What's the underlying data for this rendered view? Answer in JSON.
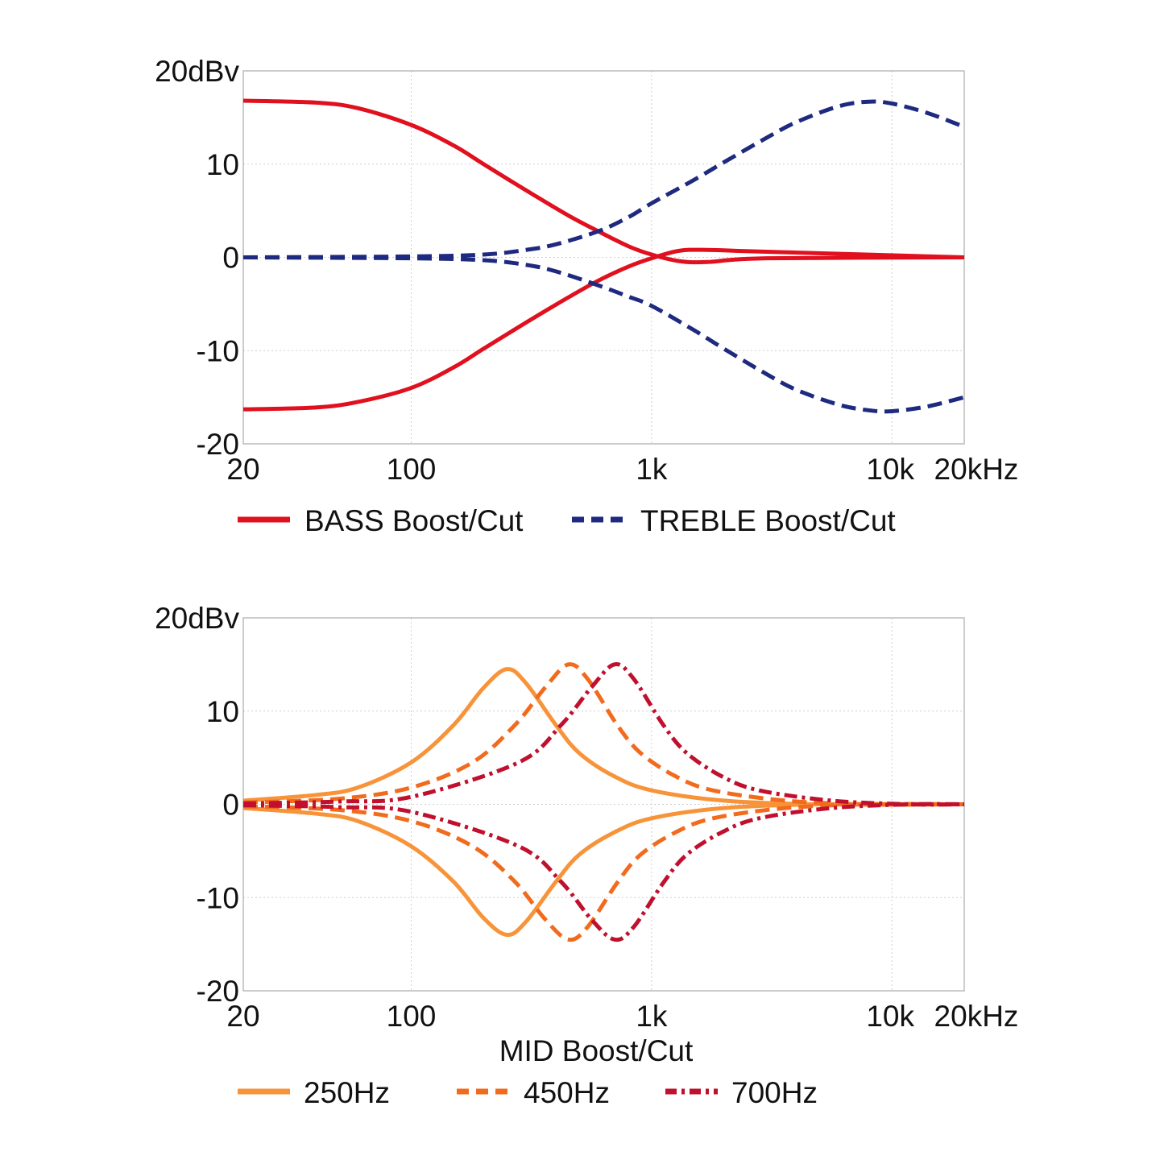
{
  "chart_data": [
    {
      "type": "line",
      "x_scale": "log",
      "xlim": [
        20,
        20000
      ],
      "ylim": [
        -20,
        20
      ],
      "grid": true,
      "x_ticks": [
        {
          "v": 20,
          "label": "20"
        },
        {
          "v": 100,
          "label": "100"
        },
        {
          "v": 1000,
          "label": "1k"
        },
        {
          "v": 10000,
          "label": "10k"
        },
        {
          "v": 20000,
          "label": "20kHz"
        }
      ],
      "y_ticks": [
        {
          "v": 20,
          "label": "20dBv"
        },
        {
          "v": 10,
          "label": "10"
        },
        {
          "v": 0,
          "label": "0"
        },
        {
          "v": -10,
          "label": "-10"
        },
        {
          "v": -20,
          "label": "-20"
        }
      ],
      "xlabel": "",
      "legend_placement": "bottom",
      "legend": [
        {
          "name": "BASS Boost/Cut",
          "color": "#e0101e",
          "dash": "solid"
        },
        {
          "name": "TREBLE Boost/Cut",
          "color": "#1e2a80",
          "dash": "dashed"
        }
      ],
      "series": [
        {
          "legend": 0,
          "color": "#e0101e",
          "dash": "solid",
          "points": [
            [
              20,
              16.8
            ],
            [
              40,
              16.6
            ],
            [
              60,
              16
            ],
            [
              100,
              14.2
            ],
            [
              150,
              12
            ],
            [
              200,
              10
            ],
            [
              300,
              7.2
            ],
            [
              450,
              4.5
            ],
            [
              600,
              2.8
            ],
            [
              800,
              1.2
            ],
            [
              1000,
              0.3
            ],
            [
              1300,
              -0.4
            ],
            [
              1700,
              -0.5
            ],
            [
              3000,
              -0.1
            ],
            [
              20000,
              0
            ]
          ]
        },
        {
          "legend": 0,
          "color": "#e0101e",
          "dash": "solid",
          "points": [
            [
              20,
              -16.3
            ],
            [
              40,
              -16.1
            ],
            [
              60,
              -15.5
            ],
            [
              100,
              -14
            ],
            [
              150,
              -11.8
            ],
            [
              200,
              -9.8
            ],
            [
              300,
              -7
            ],
            [
              450,
              -4.3
            ],
            [
              600,
              -2.5
            ],
            [
              800,
              -1
            ],
            [
              1000,
              -0.1
            ],
            [
              1300,
              0.7
            ],
            [
              1700,
              0.8
            ],
            [
              3000,
              0.6
            ],
            [
              20000,
              0
            ]
          ]
        },
        {
          "legend": 1,
          "color": "#1e2a80",
          "dash": "dashed",
          "points": [
            [
              20,
              0
            ],
            [
              100,
              0.1
            ],
            [
              200,
              0.3
            ],
            [
              300,
              0.8
            ],
            [
              400,
              1.4
            ],
            [
              600,
              2.8
            ],
            [
              800,
              4.3
            ],
            [
              1000,
              5.8
            ],
            [
              1500,
              8.3
            ],
            [
              2000,
              10.2
            ],
            [
              3000,
              12.8
            ],
            [
              4000,
              14.5
            ],
            [
              6000,
              16.2
            ],
            [
              8000,
              16.7
            ],
            [
              10000,
              16.5
            ],
            [
              14000,
              15.5
            ],
            [
              20000,
              14
            ]
          ]
        },
        {
          "legend": 1,
          "color": "#1e2a80",
          "dash": "dashed",
          "points": [
            [
              20,
              0
            ],
            [
              100,
              -0.1
            ],
            [
              200,
              -0.3
            ],
            [
              300,
              -0.8
            ],
            [
              400,
              -1.5
            ],
            [
              600,
              -3
            ],
            [
              800,
              -4.2
            ],
            [
              1000,
              -5.2
            ],
            [
              1500,
              -7.8
            ],
            [
              2000,
              -9.8
            ],
            [
              3000,
              -12.5
            ],
            [
              4000,
              -14.2
            ],
            [
              6000,
              -15.8
            ],
            [
              8000,
              -16.4
            ],
            [
              10000,
              -16.5
            ],
            [
              14000,
              -16
            ],
            [
              20000,
              -15
            ]
          ]
        }
      ]
    },
    {
      "type": "line",
      "x_scale": "log",
      "xlim": [
        20,
        20000
      ],
      "ylim": [
        -20,
        20
      ],
      "grid": true,
      "x_ticks": [
        {
          "v": 20,
          "label": "20"
        },
        {
          "v": 100,
          "label": "100"
        },
        {
          "v": 1000,
          "label": "1k"
        },
        {
          "v": 10000,
          "label": "10k"
        },
        {
          "v": 20000,
          "label": "20kHz"
        }
      ],
      "y_ticks": [
        {
          "v": 20,
          "label": "20dBv"
        },
        {
          "v": 10,
          "label": "10"
        },
        {
          "v": 0,
          "label": "0"
        },
        {
          "v": -10,
          "label": "-10"
        },
        {
          "v": -20,
          "label": "-20"
        }
      ],
      "xlabel": "MID Boost/Cut",
      "legend_placement": "bottom",
      "legend": [
        {
          "name": "250Hz",
          "color": "#f7943a",
          "dash": "solid"
        },
        {
          "name": "450Hz",
          "color": "#f26b1d",
          "dash": "dashed"
        },
        {
          "name": "700Hz",
          "color": "#c0102e",
          "dash": "dashdot"
        }
      ],
      "series": [
        {
          "legend": 0,
          "color": "#f7943a",
          "dash": "solid",
          "points": [
            [
              20,
              0.4
            ],
            [
              40,
              1
            ],
            [
              60,
              1.8
            ],
            [
              100,
              4.5
            ],
            [
              150,
              8.5
            ],
            [
              200,
              12.5
            ],
            [
              250,
              14.5
            ],
            [
              300,
              13
            ],
            [
              400,
              8.5
            ],
            [
              500,
              5.5
            ],
            [
              700,
              3
            ],
            [
              1000,
              1.5
            ],
            [
              2000,
              0.4
            ],
            [
              5000,
              0
            ],
            [
              20000,
              0
            ]
          ]
        },
        {
          "legend": 0,
          "color": "#f7943a",
          "dash": "solid",
          "points": [
            [
              20,
              -0.4
            ],
            [
              40,
              -1
            ],
            [
              60,
              -1.8
            ],
            [
              100,
              -4.5
            ],
            [
              150,
              -8.3
            ],
            [
              200,
              -12.2
            ],
            [
              250,
              -14
            ],
            [
              300,
              -12.6
            ],
            [
              400,
              -8.3
            ],
            [
              500,
              -5.4
            ],
            [
              700,
              -3
            ],
            [
              1000,
              -1.5
            ],
            [
              2000,
              -0.4
            ],
            [
              5000,
              0
            ],
            [
              20000,
              0
            ]
          ]
        },
        {
          "legend": 1,
          "color": "#f26b1d",
          "dash": "dashed",
          "points": [
            [
              20,
              0.2
            ],
            [
              50,
              0.6
            ],
            [
              100,
              1.8
            ],
            [
              180,
              4.5
            ],
            [
              270,
              8.5
            ],
            [
              360,
              12.5
            ],
            [
              450,
              15
            ],
            [
              540,
              13.5
            ],
            [
              720,
              8.5
            ],
            [
              900,
              5.5
            ],
            [
              1260,
              3
            ],
            [
              1800,
              1.5
            ],
            [
              3600,
              0.4
            ],
            [
              8000,
              0
            ],
            [
              20000,
              0
            ]
          ]
        },
        {
          "legend": 1,
          "color": "#f26b1d",
          "dash": "dashed",
          "points": [
            [
              20,
              -0.2
            ],
            [
              50,
              -0.6
            ],
            [
              100,
              -1.8
            ],
            [
              180,
              -4.5
            ],
            [
              270,
              -8.3
            ],
            [
              360,
              -12.3
            ],
            [
              450,
              -14.5
            ],
            [
              540,
              -13.2
            ],
            [
              720,
              -8.4
            ],
            [
              900,
              -5.4
            ],
            [
              1260,
              -3
            ],
            [
              1800,
              -1.5
            ],
            [
              3600,
              -0.4
            ],
            [
              8000,
              0
            ],
            [
              20000,
              0
            ]
          ]
        },
        {
          "legend": 2,
          "color": "#c0102e",
          "dash": "dashdot",
          "points": [
            [
              20,
              0.1
            ],
            [
              50,
              0.3
            ],
            [
              100,
              0.8
            ],
            [
              280,
              4.5
            ],
            [
              420,
              8.5
            ],
            [
              560,
              12.5
            ],
            [
              700,
              15
            ],
            [
              840,
              13.5
            ],
            [
              1120,
              8.5
            ],
            [
              1400,
              5.5
            ],
            [
              1960,
              3
            ],
            [
              2800,
              1.5
            ],
            [
              5600,
              0.4
            ],
            [
              12000,
              0
            ],
            [
              20000,
              0
            ]
          ]
        },
        {
          "legend": 2,
          "color": "#c0102e",
          "dash": "dashdot",
          "points": [
            [
              20,
              -0.1
            ],
            [
              50,
              -0.3
            ],
            [
              100,
              -0.8
            ],
            [
              280,
              -4.5
            ],
            [
              420,
              -8.3
            ],
            [
              560,
              -12.3
            ],
            [
              700,
              -14.5
            ],
            [
              840,
              -13.2
            ],
            [
              1120,
              -8.4
            ],
            [
              1400,
              -5.4
            ],
            [
              1960,
              -3
            ],
            [
              2800,
              -1.5
            ],
            [
              5600,
              -0.4
            ],
            [
              12000,
              0
            ],
            [
              20000,
              0
            ]
          ]
        }
      ]
    }
  ]
}
